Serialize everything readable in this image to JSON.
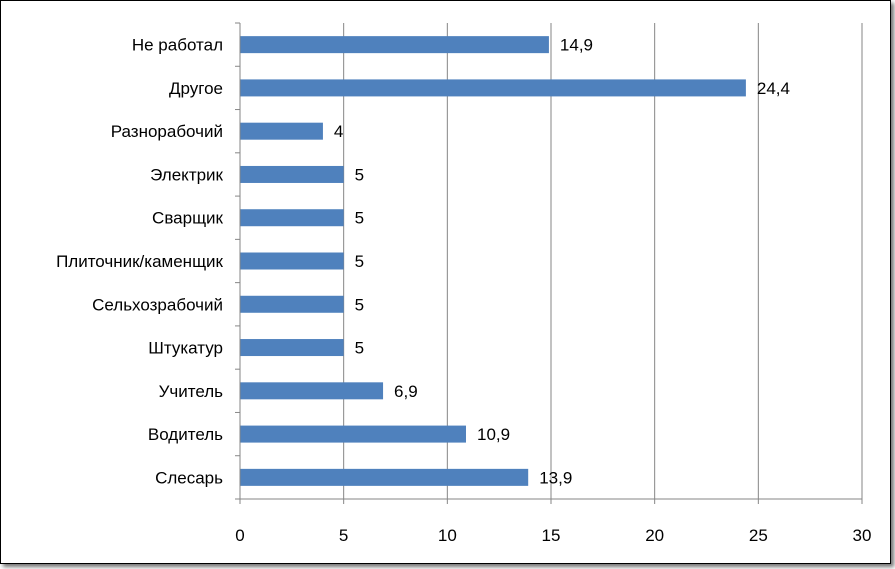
{
  "chart_data": {
    "type": "bar",
    "orientation": "horizontal",
    "categories": [
      "Слесарь",
      "Водитель",
      "Учитель",
      "Штукатур",
      "Сельхозрабочий",
      "Плиточник/каменщик",
      "Сварщик",
      "Электрик",
      "Разнорабочий",
      "Другое",
      "Не работал"
    ],
    "values": [
      13.9,
      10.9,
      6.9,
      5,
      5,
      5,
      5,
      5,
      4,
      24.4,
      14.9
    ],
    "data_labels": [
      "13,9",
      "10,9",
      "6,9",
      "5",
      "5",
      "5",
      "5",
      "5",
      "4",
      "24,4",
      "14,9"
    ],
    "xlim": [
      0,
      30
    ],
    "x_ticks": [
      0,
      5,
      10,
      15,
      20,
      25,
      30
    ],
    "x_tick_labels": [
      "0",
      "5",
      "10",
      "15",
      "20",
      "25",
      "30"
    ],
    "grid": "vertical",
    "legend": "none",
    "title": "",
    "xlabel": "",
    "ylabel": "",
    "bar_color": "#4f81bd"
  }
}
